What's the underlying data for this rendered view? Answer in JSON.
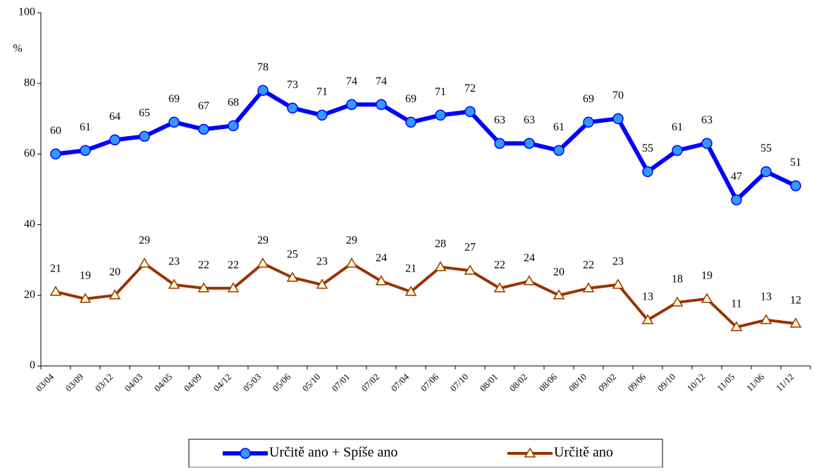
{
  "chart_data": {
    "type": "line",
    "y_unit_label": "%",
    "categories": [
      "03/04",
      "03/09",
      "03/12",
      "04/03",
      "04/05",
      "04/09",
      "04/12",
      "05/03",
      "05/06",
      "05/10",
      "07/01",
      "07/02",
      "07/04",
      "07/06",
      "07/10",
      "08/01",
      "08/02",
      "08/06",
      "08/10",
      "09/02",
      "09/06",
      "09/10",
      "10/12",
      "11/05",
      "11/06",
      "11/12"
    ],
    "series": [
      {
        "name": "Určitě ano + Spíše ano",
        "color": "#0000ff",
        "marker": "circle",
        "marker_fill": "#3399ff",
        "values": [
          60,
          61,
          64,
          65,
          69,
          67,
          68,
          78,
          73,
          71,
          74,
          74,
          69,
          71,
          72,
          63,
          63,
          61,
          69,
          70,
          55,
          61,
          63,
          47,
          55,
          51
        ]
      },
      {
        "name": "Určitě ano",
        "color": "#993300",
        "marker": "triangle",
        "marker_fill": "#ffffcc",
        "values": [
          21,
          19,
          20,
          29,
          23,
          22,
          22,
          29,
          25,
          23,
          29,
          24,
          21,
          28,
          27,
          22,
          24,
          20,
          22,
          23,
          13,
          18,
          19,
          11,
          13,
          12
        ]
      }
    ],
    "ylim": [
      0,
      100
    ],
    "yticks": [
      0,
      20,
      40,
      60,
      80,
      100
    ],
    "grid": false,
    "legend": "bottom"
  }
}
